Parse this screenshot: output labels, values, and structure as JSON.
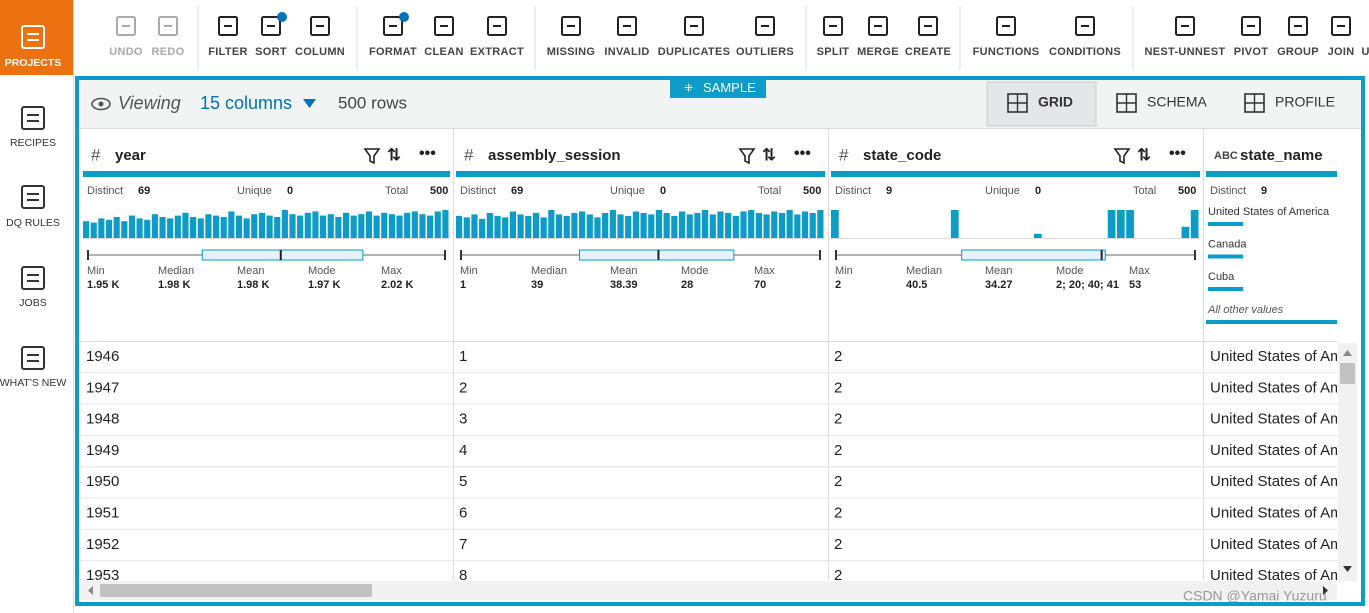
{
  "sidebar": [
    {
      "label": "PROJECTS"
    },
    {
      "label": "RECIPES"
    },
    {
      "label": "DQ RULES"
    },
    {
      "label": "JOBS"
    },
    {
      "label": "WHAT'S NEW"
    }
  ],
  "toolbar": [
    [
      {
        "label": "UNDO",
        "disabled": true
      },
      {
        "label": "REDO",
        "disabled": true
      }
    ],
    [
      {
        "label": "FILTER"
      },
      {
        "label": "SORT",
        "badge": true
      },
      {
        "label": "COLUMN"
      }
    ],
    [
      {
        "label": "FORMAT",
        "badge": true
      },
      {
        "label": "CLEAN"
      },
      {
        "label": "EXTRACT"
      }
    ],
    [
      {
        "label": "MISSING"
      },
      {
        "label": "INVALID"
      },
      {
        "label": "DUPLICATES"
      },
      {
        "label": "OUTLIERS"
      }
    ],
    [
      {
        "label": "SPLIT"
      },
      {
        "label": "MERGE"
      },
      {
        "label": "CREATE"
      }
    ],
    [
      {
        "label": "FUNCTIONS"
      },
      {
        "label": "CONDITIONS"
      }
    ],
    [
      {
        "label": "NEST-UNNEST"
      },
      {
        "label": "PIVOT"
      },
      {
        "label": "GROUP"
      },
      {
        "label": "JOIN"
      },
      {
        "label": "UNION"
      }
    ]
  ],
  "sample": "SAMPLE",
  "viewing": {
    "label": "Viewing",
    "columns": "15 columns",
    "rows": "500 rows"
  },
  "tabs": [
    {
      "label": "GRID",
      "selected": true
    },
    {
      "label": "SCHEMA"
    },
    {
      "label": "PROFILE"
    }
  ],
  "stat_labels": [
    "Distinct",
    "Unique",
    "Total"
  ],
  "summary_labels": [
    "Min",
    "Median",
    "Mean",
    "Mode",
    "Max"
  ],
  "columns": [
    {
      "type": "#",
      "name": "year",
      "stats": [
        69,
        0,
        500
      ],
      "summary": [
        "1.95 K",
        "1.98 K",
        "1.98 K",
        "1.97 K",
        "2.02 K"
      ],
      "histogram": [
        60,
        55,
        70,
        65,
        75,
        60,
        80,
        70,
        65,
        85,
        75,
        70,
        80,
        90,
        75,
        70,
        85,
        80,
        75,
        95,
        80,
        70,
        85,
        90,
        80,
        75,
        100,
        85,
        80,
        90,
        95,
        80,
        85,
        75,
        90,
        80,
        85,
        95,
        80,
        90,
        85,
        80,
        90,
        95,
        85,
        80,
        95,
        100
      ]
    },
    {
      "type": "#",
      "name": "assembly_session",
      "stats": [
        69,
        0,
        500
      ],
      "summary": [
        "1",
        "39",
        "38.39",
        "28",
        "70"
      ],
      "histogram": [
        75,
        70,
        80,
        65,
        85,
        75,
        70,
        90,
        80,
        75,
        85,
        70,
        95,
        80,
        75,
        85,
        90,
        80,
        70,
        85,
        95,
        80,
        75,
        90,
        85,
        80,
        95,
        85,
        75,
        90,
        80,
        85,
        95,
        80,
        90,
        85,
        75,
        90,
        95,
        85,
        80,
        90,
        85,
        95,
        80,
        90,
        85,
        95
      ]
    },
    {
      "type": "#",
      "name": "state_code",
      "stats": [
        9,
        0,
        500
      ],
      "summary": [
        "2",
        "40.5",
        "34.27",
        "2; 20; 40; 41",
        "53"
      ],
      "histogram": [
        100,
        0,
        0,
        0,
        0,
        0,
        0,
        0,
        0,
        0,
        0,
        0,
        0,
        100,
        0,
        0,
        0,
        0,
        0,
        0,
        0,
        0,
        15,
        0,
        0,
        0,
        0,
        0,
        0,
        0,
        100,
        100,
        100,
        0,
        0,
        0,
        0,
        0,
        40,
        100
      ]
    },
    {
      "type": "ABC",
      "name": "state_name",
      "stats": [
        9
      ],
      "top_values": [
        "United States of America",
        "Canada",
        "Cuba"
      ],
      "other": "All other values"
    }
  ],
  "rows": [
    [
      1946,
      1,
      2,
      "United States of America"
    ],
    [
      1947,
      2,
      2,
      "United States of America"
    ],
    [
      1948,
      3,
      2,
      "United States of America"
    ],
    [
      1949,
      4,
      2,
      "United States of America"
    ],
    [
      1950,
      5,
      2,
      "United States of America"
    ],
    [
      1951,
      6,
      2,
      "United States of America"
    ],
    [
      1952,
      7,
      2,
      "United States of America"
    ],
    [
      1953,
      8,
      2,
      "United States of America"
    ]
  ],
  "watermark": "CSDN @Yamai Yuzuru"
}
